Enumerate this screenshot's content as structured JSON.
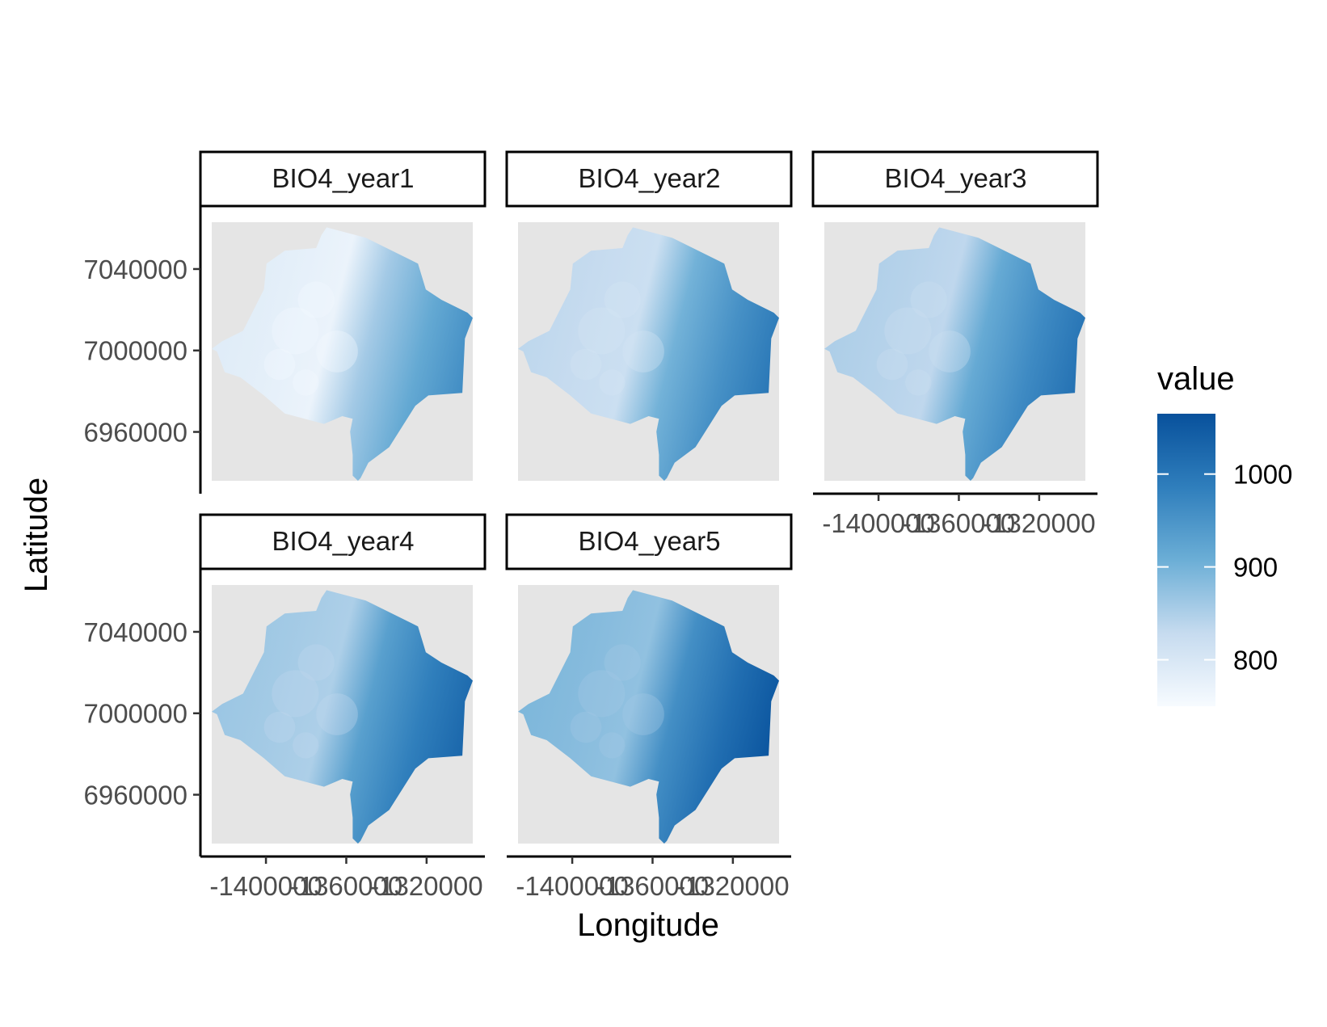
{
  "chart_data": {
    "type": "heatmap",
    "description_of_panels": "faceted raster maps",
    "panels": [
      {
        "label": "BIO4_year1",
        "value_min": 770,
        "value_max": 965
      },
      {
        "label": "BIO4_year2",
        "value_min": 820,
        "value_max": 1000
      },
      {
        "label": "BIO4_year3",
        "value_min": 835,
        "value_max": 1010
      },
      {
        "label": "BIO4_year4",
        "value_min": 850,
        "value_max": 1030
      },
      {
        "label": "BIO4_year5",
        "value_min": 875,
        "value_max": 1060
      }
    ],
    "xlabel": "Longitude",
    "ylabel": "Latitude",
    "x_ticks": [
      "-1400000",
      "-1360000",
      "-1320000"
    ],
    "x_tick_values": [
      -1400000,
      -1360000,
      -1320000
    ],
    "y_ticks": [
      "7040000",
      "7000000",
      "6960000"
    ],
    "y_tick_values": [
      7040000,
      7000000,
      6960000
    ],
    "xlim": [
      -1427000,
      -1297000
    ],
    "ylim": [
      6936000,
      7063000
    ],
    "legend": {
      "title": "value",
      "labels": [
        "1000",
        "900",
        "800"
      ],
      "label_values": [
        1000,
        900,
        800
      ],
      "range": [
        750,
        1065
      ],
      "color_low": "#f7fbff",
      "color_high": "#08519c",
      "placement": "right"
    },
    "panel_background": "#e5e5e5",
    "grid": false
  }
}
